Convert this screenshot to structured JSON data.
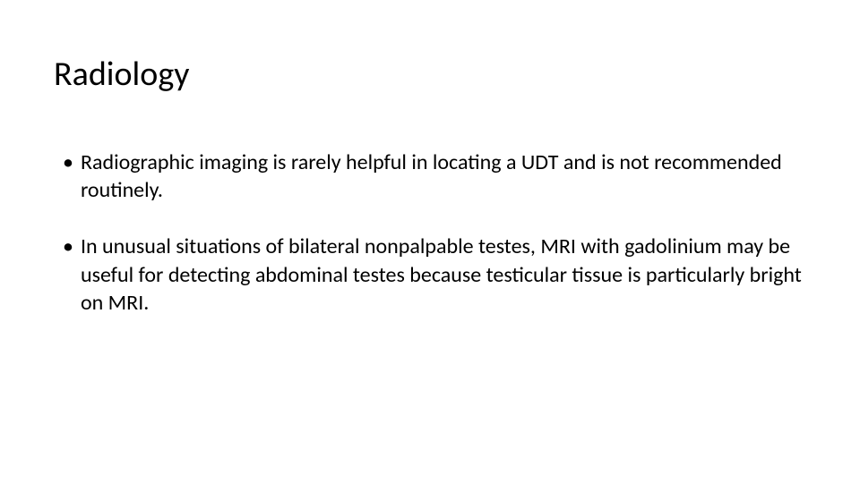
{
  "slide": {
    "title": "Radiology",
    "bullets": [
      {
        "marker": "•",
        "text": "Radiographic imaging is rarely helpful in locating a UDT and is not recommended routinely."
      },
      {
        "marker": "•",
        "text": "In unusual situations of bilateral nonpalpable testes, MRI with gadolinium may be useful for detecting abdominal testes because testicular tissue is particularly bright on MRI."
      }
    ],
    "styling": {
      "background_color": "#ffffff",
      "text_color": "#000000",
      "title_fontsize": 38,
      "body_fontsize": 24,
      "font_family": "Calibri",
      "title_weight": "400",
      "line_height": 1.3,
      "bullet_spacing": 32
    }
  }
}
